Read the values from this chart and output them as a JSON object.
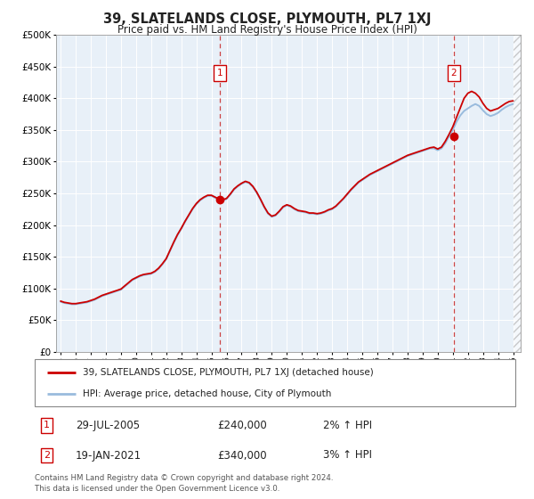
{
  "title": "39, SLATELANDS CLOSE, PLYMOUTH, PL7 1XJ",
  "subtitle": "Price paid vs. HM Land Registry's House Price Index (HPI)",
  "ylim": [
    0,
    500000
  ],
  "ytick_values": [
    0,
    50000,
    100000,
    150000,
    200000,
    250000,
    300000,
    350000,
    400000,
    450000,
    500000
  ],
  "xlim_start": 1994.7,
  "xlim_end": 2025.5,
  "plot_bg_color": "#e8f0f8",
  "fig_bg_color": "#ffffff",
  "line1_color": "#cc0000",
  "line2_color": "#99bbdd",
  "grid_color": "#ffffff",
  "marker1_x": 2005.57,
  "marker1_y": 240000,
  "marker2_x": 2021.05,
  "marker2_y": 340000,
  "vline1_x": 2005.57,
  "vline2_x": 2021.05,
  "legend_line1": "39, SLATELANDS CLOSE, PLYMOUTH, PL7 1XJ (detached house)",
  "legend_line2": "HPI: Average price, detached house, City of Plymouth",
  "annotation1_num": "1",
  "annotation1_date": "29-JUL-2005",
  "annotation1_price": "£240,000",
  "annotation1_hpi": "2% ↑ HPI",
  "annotation2_num": "2",
  "annotation2_date": "19-JAN-2021",
  "annotation2_price": "£340,000",
  "annotation2_hpi": "3% ↑ HPI",
  "footer": "Contains HM Land Registry data © Crown copyright and database right 2024.\nThis data is licensed under the Open Government Licence v3.0.",
  "hpi_data_x": [
    1995.0,
    1995.25,
    1995.5,
    1995.75,
    1996.0,
    1996.25,
    1996.5,
    1996.75,
    1997.0,
    1997.25,
    1997.5,
    1997.75,
    1998.0,
    1998.25,
    1998.5,
    1998.75,
    1999.0,
    1999.25,
    1999.5,
    1999.75,
    2000.0,
    2000.25,
    2000.5,
    2000.75,
    2001.0,
    2001.25,
    2001.5,
    2001.75,
    2002.0,
    2002.25,
    2002.5,
    2002.75,
    2003.0,
    2003.25,
    2003.5,
    2003.75,
    2004.0,
    2004.25,
    2004.5,
    2004.75,
    2005.0,
    2005.25,
    2005.5,
    2005.75,
    2006.0,
    2006.25,
    2006.5,
    2006.75,
    2007.0,
    2007.25,
    2007.5,
    2007.75,
    2008.0,
    2008.25,
    2008.5,
    2008.75,
    2009.0,
    2009.25,
    2009.5,
    2009.75,
    2010.0,
    2010.25,
    2010.5,
    2010.75,
    2011.0,
    2011.25,
    2011.5,
    2011.75,
    2012.0,
    2012.25,
    2012.5,
    2012.75,
    2013.0,
    2013.25,
    2013.5,
    2013.75,
    2014.0,
    2014.25,
    2014.5,
    2014.75,
    2015.0,
    2015.25,
    2015.5,
    2015.75,
    2016.0,
    2016.25,
    2016.5,
    2016.75,
    2017.0,
    2017.25,
    2017.5,
    2017.75,
    2018.0,
    2018.25,
    2018.5,
    2018.75,
    2019.0,
    2019.25,
    2019.5,
    2019.75,
    2020.0,
    2020.25,
    2020.5,
    2020.75,
    2021.0,
    2021.25,
    2021.5,
    2021.75,
    2022.0,
    2022.25,
    2022.5,
    2022.75,
    2023.0,
    2023.25,
    2023.5,
    2023.75,
    2024.0,
    2024.25,
    2024.5,
    2024.75,
    2025.0
  ],
  "hpi_data_y": [
    79000,
    77000,
    76000,
    75000,
    75000,
    76000,
    77000,
    78000,
    80000,
    82000,
    85000,
    88000,
    90000,
    92000,
    94000,
    96000,
    98000,
    103000,
    108000,
    113000,
    116000,
    119000,
    121000,
    122000,
    123000,
    126000,
    131000,
    138000,
    146000,
    159000,
    172000,
    184000,
    194000,
    205000,
    215000,
    225000,
    233000,
    239000,
    243000,
    246000,
    246000,
    243000,
    240000,
    239000,
    241000,
    248000,
    256000,
    261000,
    265000,
    268000,
    266000,
    260000,
    251000,
    240000,
    228000,
    218000,
    213000,
    215000,
    221000,
    228000,
    231000,
    229000,
    225000,
    222000,
    221000,
    220000,
    218000,
    218000,
    217000,
    218000,
    220000,
    223000,
    225000,
    229000,
    235000,
    241000,
    248000,
    255000,
    261000,
    267000,
    271000,
    275000,
    279000,
    282000,
    285000,
    288000,
    291000,
    294000,
    297000,
    300000,
    303000,
    306000,
    309000,
    311000,
    313000,
    315000,
    317000,
    319000,
    321000,
    321000,
    318000,
    321000,
    329000,
    340000,
    350000,
    363000,
    373000,
    380000,
    384000,
    388000,
    391000,
    388000,
    381000,
    375000,
    372000,
    374000,
    377000,
    382000,
    386000,
    389000,
    391000
  ],
  "red_data_y": [
    80000,
    78000,
    77000,
    76000,
    76000,
    77000,
    78000,
    79000,
    81000,
    83000,
    86000,
    89000,
    91000,
    93000,
    95000,
    97000,
    99000,
    104000,
    109000,
    114000,
    117000,
    120000,
    122000,
    123000,
    124000,
    127000,
    132000,
    139000,
    147000,
    160000,
    173000,
    185000,
    195000,
    206000,
    216000,
    226000,
    234000,
    240000,
    244000,
    247000,
    247000,
    244000,
    241000,
    240000,
    242000,
    249000,
    257000,
    262000,
    266000,
    269000,
    267000,
    261000,
    252000,
    241000,
    229000,
    219000,
    214000,
    216000,
    222000,
    229000,
    232000,
    230000,
    226000,
    223000,
    222000,
    221000,
    219000,
    219000,
    218000,
    219000,
    221000,
    224000,
    226000,
    230000,
    236000,
    242000,
    249000,
    256000,
    262000,
    268000,
    272000,
    276000,
    280000,
    283000,
    286000,
    289000,
    292000,
    295000,
    298000,
    301000,
    304000,
    307000,
    310000,
    312000,
    314000,
    316000,
    318000,
    320000,
    322000,
    323000,
    320000,
    323000,
    332000,
    343000,
    355000,
    370000,
    385000,
    400000,
    408000,
    411000,
    408000,
    402000,
    392000,
    384000,
    380000,
    382000,
    384000,
    388000,
    392000,
    395000,
    396000
  ]
}
